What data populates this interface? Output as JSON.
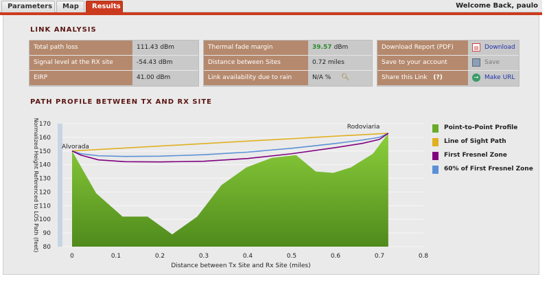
{
  "tabs": [
    {
      "label": "Parameters",
      "active": false
    },
    {
      "label": "Map",
      "active": false
    },
    {
      "label": "Results",
      "active": true
    }
  ],
  "welcome": "Welcome Back, paulo",
  "link_analysis": {
    "title": "LINK ANALYSIS",
    "box1": [
      {
        "label": "Total path loss",
        "value": "111.43 dBm"
      },
      {
        "label": "Signal level at the RX site",
        "value": "-54.43 dBm"
      },
      {
        "label": "EIRP",
        "value": "41.00 dBm"
      }
    ],
    "box2": [
      {
        "label": "Thermal fade margin",
        "value": "39.57",
        "unit": "dBm"
      },
      {
        "label": "Distance between Sites",
        "value": "0.72 miles"
      },
      {
        "label": "Link availability due to rain",
        "value": "N/A %"
      }
    ],
    "box3": [
      {
        "label": "Download Report (PDF)",
        "action": "Download",
        "icon": "pdf-icon"
      },
      {
        "label": "Save to your account",
        "action": "Save",
        "icon": "save-icon"
      },
      {
        "label": "Share this Link",
        "help": "(?)",
        "action": "Make URL",
        "icon": "link-icon"
      }
    ]
  },
  "profile_title": "PATH PROFILE BETWEEN TX AND RX SITE",
  "colors": {
    "accent": "#cc3a1e",
    "label_bg": "#b5896d",
    "terrain": "#6aaa2a",
    "los": "#e0b020",
    "fresnel": "#800080",
    "fresnel60": "#5b90d6"
  },
  "chart_data": {
    "type": "area",
    "title": "",
    "xlabel": "Distance between Tx Site and Rx Site (miles)",
    "ylabel": "Normalized Height Referenced to LOS Path (feet)",
    "xlim": [
      0,
      0.8
    ],
    "ylim": [
      80,
      170
    ],
    "xticks": [
      "0",
      "0.1",
      "0.2",
      "0.3",
      "0.4",
      "0.5",
      "0.6",
      "0.7",
      "0.8"
    ],
    "yticks": [
      "80",
      "90",
      "100",
      "110",
      "120",
      "130",
      "140",
      "150",
      "160",
      "170"
    ],
    "site_labels": {
      "tx": "Alvorada",
      "rx": "Rodoviaria"
    },
    "series": [
      {
        "name": "Point-to-Point Profile",
        "color": "#6aaa2a",
        "x": [
          0,
          0.055,
          0.115,
          0.172,
          0.228,
          0.285,
          0.34,
          0.397,
          0.455,
          0.51,
          0.555,
          0.595,
          0.635,
          0.685,
          0.72
        ],
        "y": [
          150,
          119,
          102,
          102,
          89,
          102,
          125,
          138,
          145,
          147,
          135,
          134,
          138,
          148,
          163
        ]
      },
      {
        "name": "Line of Sight Path",
        "color": "#e0b020",
        "x": [
          0,
          0.72
        ],
        "y": [
          150,
          163
        ]
      },
      {
        "name": "First Fresnel Zone",
        "color": "#800080",
        "x": [
          0,
          0.02,
          0.06,
          0.12,
          0.2,
          0.3,
          0.4,
          0.5,
          0.6,
          0.66,
          0.7,
          0.72
        ],
        "y": [
          150,
          147,
          143.5,
          142.2,
          142,
          142.5,
          144.5,
          148,
          152.5,
          155.5,
          158.5,
          163
        ]
      },
      {
        "name": "60% of First Fresnel Zone",
        "color": "#5b90d6",
        "x": [
          0,
          0.02,
          0.06,
          0.12,
          0.2,
          0.3,
          0.4,
          0.5,
          0.6,
          0.66,
          0.7,
          0.72
        ],
        "y": [
          150,
          148,
          146.5,
          146,
          146.2,
          147.3,
          149.2,
          152,
          155.5,
          158,
          160,
          163
        ]
      }
    ],
    "legend": "right"
  }
}
